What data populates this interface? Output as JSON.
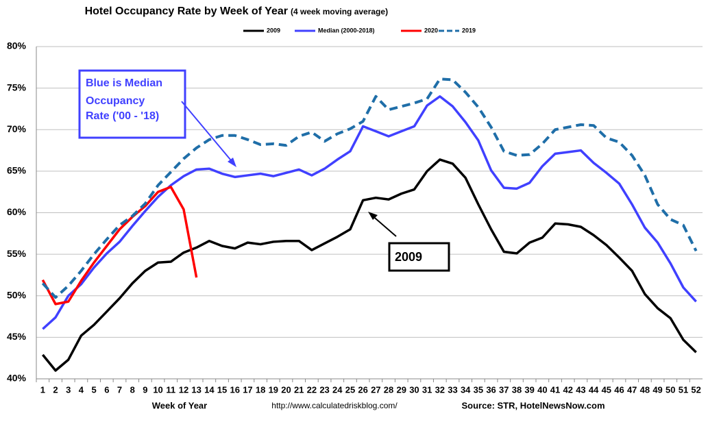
{
  "chart_data": {
    "type": "line",
    "title": "Hotel Occupancy Rate by  Week of Year",
    "subtitle": "(4 week moving average)",
    "x_label": "Week of Year",
    "url_note": "http://www.calculatedriskblog.com/",
    "source": "Source: STR, HotelNewsNow.com",
    "annotations": [
      [
        "Blue is Median",
        "Occupancy",
        "Rate ('00 - '18)"
      ],
      [
        "2009"
      ]
    ],
    "categories": [
      1,
      2,
      3,
      4,
      5,
      6,
      7,
      8,
      9,
      10,
      11,
      12,
      13,
      14,
      15,
      16,
      17,
      18,
      19,
      20,
      21,
      22,
      23,
      24,
      25,
      26,
      27,
      28,
      29,
      30,
      31,
      32,
      33,
      34,
      35,
      36,
      37,
      38,
      39,
      40,
      41,
      42,
      43,
      44,
      45,
      46,
      47,
      48,
      49,
      50,
      51,
      52
    ],
    "ylim": [
      40,
      80
    ],
    "yticks": [
      {
        "value": 40,
        "label": "40%"
      },
      {
        "value": 45,
        "label": "45%"
      },
      {
        "value": 50,
        "label": "50%"
      },
      {
        "value": 55,
        "label": "55%"
      },
      {
        "value": 60,
        "label": "60%"
      },
      {
        "value": 65,
        "label": "65%"
      },
      {
        "value": 70,
        "label": "70%"
      },
      {
        "value": 75,
        "label": "75%"
      },
      {
        "value": 80,
        "label": "80%"
      }
    ],
    "grid": true,
    "series": [
      {
        "name": "2009",
        "color": "#000000",
        "dashed": false,
        "values": [
          42.9,
          41.0,
          42.3,
          45.2,
          46.5,
          48.1,
          49.7,
          51.5,
          53.0,
          54.0,
          54.1,
          55.2,
          55.8,
          56.6,
          56.0,
          55.7,
          56.4,
          56.2,
          56.5,
          56.6,
          56.6,
          55.5,
          56.3,
          57.1,
          58.0,
          61.5,
          61.8,
          61.6,
          62.3,
          62.8,
          65.0,
          66.4,
          65.9,
          64.2,
          61.0,
          58.0,
          55.3,
          55.1,
          56.4,
          57.0,
          58.7,
          58.6,
          58.3,
          57.3,
          56.1,
          54.6,
          53.0,
          50.2,
          48.5,
          47.3,
          44.7,
          43.2
        ]
      },
      {
        "name": "Median (2000-2018)",
        "color": "#4040ff",
        "dashed": false,
        "values": [
          46.0,
          47.4,
          50.0,
          51.4,
          53.4,
          55.1,
          56.5,
          58.4,
          60.2,
          61.9,
          63.3,
          64.4,
          65.2,
          65.3,
          64.7,
          64.3,
          64.5,
          64.7,
          64.4,
          64.8,
          65.2,
          64.5,
          65.3,
          66.4,
          67.4,
          70.4,
          69.8,
          69.2,
          69.8,
          70.4,
          72.9,
          74.0,
          72.8,
          70.9,
          68.7,
          65.1,
          63.0,
          62.9,
          63.6,
          65.6,
          67.1,
          67.3,
          67.5,
          66.0,
          64.8,
          63.5,
          61.0,
          58.2,
          56.4,
          53.9,
          51.0,
          49.3
        ]
      },
      {
        "name": "2020",
        "color": "#ff0000",
        "dashed": false,
        "values": [
          51.9,
          49.0,
          49.3,
          51.8,
          54.0,
          56.0,
          58.0,
          59.5,
          60.8,
          62.5,
          63.1,
          60.4,
          52.2,
          null,
          null,
          null,
          null,
          null,
          null,
          null,
          null,
          null,
          null,
          null,
          null,
          null,
          null,
          null,
          null,
          null,
          null,
          null,
          null,
          null,
          null,
          null,
          null,
          null,
          null,
          null,
          null,
          null,
          null,
          null,
          null,
          null,
          null,
          null,
          null,
          null,
          null,
          null
        ]
      },
      {
        "name": "2019",
        "color": "#1f6ea8",
        "dashed": true,
        "values": [
          51.5,
          49.8,
          51.2,
          53.0,
          55.0,
          56.8,
          58.5,
          59.6,
          61.1,
          63.3,
          64.9,
          66.5,
          67.8,
          68.8,
          69.3,
          69.3,
          68.8,
          68.2,
          68.3,
          68.1,
          69.2,
          69.7,
          68.6,
          69.5,
          70.1,
          71.0,
          74.0,
          72.4,
          72.8,
          73.2,
          73.7,
          76.1,
          76.0,
          74.5,
          72.7,
          70.3,
          67.4,
          66.9,
          67.0,
          68.3,
          70.0,
          70.3,
          70.6,
          70.5,
          69.0,
          68.5,
          66.9,
          64.5,
          61.0,
          59.2,
          58.5,
          55.4
        ]
      }
    ]
  }
}
